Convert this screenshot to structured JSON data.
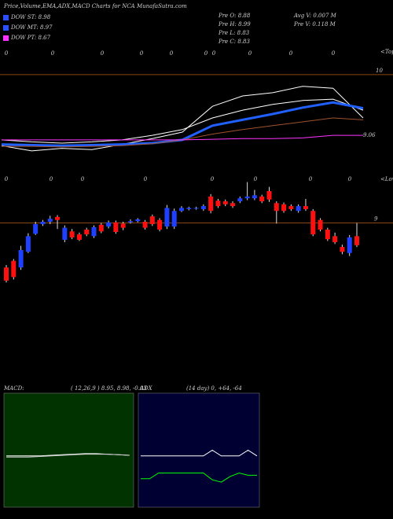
{
  "header": {
    "title": "Price,Volume,EMA,ADX,MACD Charts for NCA MunafaSutra.com",
    "legend": [
      {
        "label": "DOW ST: 8.98",
        "color": "#2850ff"
      },
      {
        "label": "DOW MT: 8.97",
        "color": "#2850ff"
      },
      {
        "label": "DOW PT: 8.67",
        "color": "#ff33ff"
      }
    ],
    "stats": [
      "Pre  O: 8.88",
      "Pre  H: 8.99",
      "Pre  L: 8.83",
      "Pre  C: 8.83"
    ],
    "stats2": [
      "Avg V: 0.007 M",
      "Pre   V: 0.118 M"
    ]
  },
  "markers": {
    "tops_label": "<Tops",
    "tops": [
      "0",
      "0",
      "0",
      "0",
      "0",
      "0",
      "0",
      "0",
      "0",
      "0"
    ],
    "lows_label": "<Lows",
    "lows": [
      "0",
      "0",
      "0",
      "0",
      "0",
      "0",
      "0",
      "0"
    ]
  },
  "chart_data": [
    {
      "type": "line",
      "ylim": [
        8.66,
        10.06
      ],
      "yticks": [
        10
      ],
      "grid_color": "#8b4513",
      "current": 9.06,
      "series": [
        {
          "name": "EMA upper",
          "color": "#ffffff",
          "values": [
            8.99,
            8.96,
            8.94,
            8.96,
            8.99,
            9.06,
            9.15,
            9.33,
            9.45,
            9.54,
            9.6,
            9.62,
            9.45
          ]
        },
        {
          "name": "Price",
          "color": "#ffffff",
          "values": [
            8.9,
            8.82,
            8.86,
            8.84,
            8.92,
            9.01,
            9.11,
            9.51,
            9.67,
            9.72,
            9.82,
            9.79,
            9.33
          ]
        },
        {
          "name": "EMA short",
          "color": "#2060ff",
          "values": [
            8.92,
            8.91,
            8.9,
            8.91,
            8.92,
            8.94,
            8.99,
            9.21,
            9.3,
            9.39,
            9.49,
            9.57,
            9.48
          ]
        },
        {
          "name": "EMA long",
          "color": "#a0522d",
          "values": [
            8.89,
            8.89,
            8.88,
            8.89,
            8.9,
            8.93,
            8.99,
            9.08,
            9.15,
            9.21,
            9.27,
            9.33,
            9.3
          ]
        },
        {
          "name": "EMA 200",
          "color": "#ff33ff",
          "values": [
            8.99,
            8.99,
            8.99,
            8.99,
            8.99,
            8.99,
            8.99,
            9.0,
            9.01,
            9.01,
            9.02,
            9.06,
            9.06
          ]
        }
      ]
    },
    {
      "type": "candlestick",
      "ylim": [
        8.0,
        9.7
      ],
      "yticks": [
        9
      ],
      "grid_color": "#8b4513",
      "up_color": "#2040ff",
      "down_color": "#ff1010",
      "open": [
        8.26,
        8.37,
        8.26,
        8.52,
        8.82,
        8.98,
        9.02,
        9.1,
        8.72,
        8.86,
        8.81,
        8.89,
        8.78,
        8.97,
        8.94,
        9.01,
        8.99,
        9.01,
        9.03,
        9.02,
        9.11,
        9.05,
        8.94,
        8.94,
        9.2,
        9.23,
        9.24,
        9.23,
        9.44,
        9.37,
        9.36,
        9.33,
        9.36,
        9.41,
        9.41,
        9.44,
        9.53,
        9.33,
        9.31,
        9.28,
        9.2,
        9.28,
        9.2,
        9.05,
        8.89,
        8.78,
        8.6,
        8.5,
        8.78
      ],
      "high": [
        8.3,
        8.4,
        8.62,
        8.83,
        9.02,
        9.05,
        9.12,
        9.13,
        8.96,
        8.9,
        8.84,
        8.92,
        8.96,
        9.0,
        9.04,
        9.04,
        9.02,
        9.06,
        9.08,
        9.05,
        9.14,
        9.08,
        9.3,
        9.24,
        9.28,
        9.27,
        9.27,
        9.31,
        9.48,
        9.4,
        9.39,
        9.36,
        9.44,
        9.68,
        9.55,
        9.47,
        9.6,
        9.36,
        9.34,
        9.31,
        9.31,
        9.4,
        9.23,
        9.08,
        8.92,
        8.84,
        8.64,
        8.8,
        9.0
      ],
      "low": [
        8.01,
        8.06,
        8.22,
        8.5,
        8.8,
        8.95,
        8.98,
        8.9,
        8.68,
        8.73,
        8.7,
        8.78,
        8.75,
        8.83,
        8.91,
        8.82,
        8.88,
        8.99,
        9.01,
        8.89,
        8.95,
        8.86,
        8.9,
        8.9,
        9.18,
        9.21,
        9.22,
        9.2,
        9.16,
        9.25,
        9.28,
        9.25,
        9.33,
        9.38,
        9.38,
        9.33,
        9.35,
        8.99,
        9.17,
        9.2,
        9.17,
        9.2,
        8.78,
        8.86,
        8.7,
        8.65,
        8.48,
        8.45,
        8.6
      ],
      "close": [
        8.04,
        8.1,
        8.55,
        8.78,
        8.98,
        9.02,
        9.07,
        9.05,
        8.92,
        8.76,
        8.72,
        8.81,
        8.93,
        8.86,
        9.01,
        8.85,
        8.92,
        9.03,
        9.06,
        8.92,
        8.98,
        8.89,
        9.25,
        9.2,
        9.25,
        9.25,
        9.25,
        9.28,
        9.2,
        9.28,
        9.31,
        9.28,
        9.41,
        9.44,
        9.46,
        9.36,
        9.39,
        9.2,
        9.2,
        9.23,
        9.28,
        9.23,
        8.81,
        8.89,
        8.73,
        8.68,
        8.52,
        8.76,
        8.63
      ]
    },
    {
      "type": "line",
      "title": "MACD:",
      "subtitle": "( 12,26,9 ) 8.95, 8.98, -0.03",
      "background": "#003300",
      "ylim": [
        -1,
        1
      ],
      "series": [
        {
          "name": "MACD",
          "color": "#ffffff",
          "values": [
            -0.1,
            -0.1,
            -0.1,
            -0.1,
            -0.09,
            -0.08,
            -0.07,
            -0.06,
            -0.06,
            -0.07,
            -0.08,
            -0.09
          ]
        },
        {
          "name": "Signal",
          "color": "#cccccc",
          "values": [
            -0.12,
            -0.12,
            -0.12,
            -0.11,
            -0.1,
            -0.09,
            -0.08,
            -0.07,
            -0.07,
            -0.07,
            -0.08,
            -0.09
          ]
        }
      ]
    },
    {
      "type": "line",
      "title": "ADX",
      "subtitle": "(14 day) 0, +64, -64",
      "background": "#000033",
      "ylim": [
        0,
        100
      ],
      "series": [
        {
          "name": "ADX",
          "color": "#ffffff",
          "values": [
            45,
            45,
            45,
            45,
            45,
            45,
            45,
            45,
            50,
            45,
            45,
            45,
            50,
            45
          ]
        },
        {
          "name": "DI",
          "color": "#00ff00",
          "values": [
            25,
            25,
            30,
            30,
            30,
            30,
            30,
            30,
            24,
            22,
            27,
            30,
            28,
            28
          ]
        }
      ]
    }
  ]
}
